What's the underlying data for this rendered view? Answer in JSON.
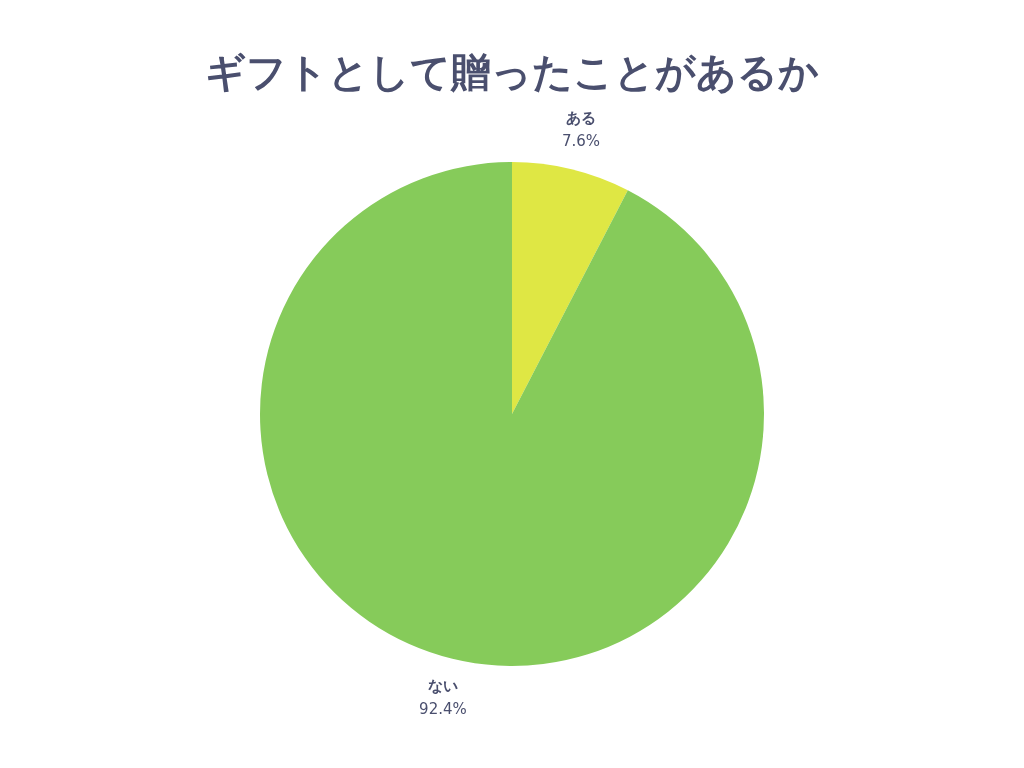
{
  "chart_data": {
    "type": "pie",
    "title": "ギフトとして贈ったことがあるか",
    "categories": [
      "ある",
      "ない"
    ],
    "values": [
      7.6,
      92.4
    ],
    "colors": [
      "#dfe744",
      "#86cb5a"
    ],
    "value_labels": [
      "7.6%",
      "92.4%"
    ],
    "legend": false
  }
}
